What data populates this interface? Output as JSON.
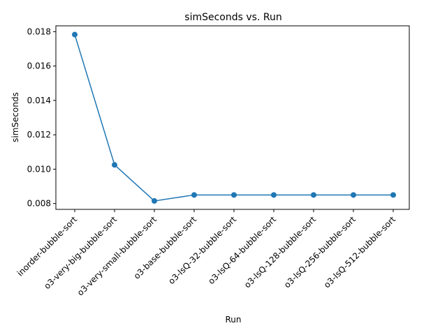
{
  "chart_data": {
    "type": "line",
    "title": "simSeconds vs. Run",
    "xlabel": "Run",
    "ylabel": "simSeconds",
    "categories": [
      "inorder-bubble-sort",
      "o3-very-big-bubble-sort",
      "o3-very-small-bubble-sort",
      "o3-base-bubble-sort",
      "o3-lsQ-32-bubble-sort",
      "o3-lsQ-64-bubble-sort",
      "o3-lsQ-128-bubble-sort",
      "o3-lsQ-256-bubble-sort",
      "o3-lsQ-512-bubble-sort"
    ],
    "series": [
      {
        "values": [
          0.01783,
          0.01025,
          0.00815,
          0.0085,
          0.0085,
          0.0085,
          0.0085,
          0.0085,
          0.0085
        ],
        "color": "#1f77b4",
        "marker": "circle"
      }
    ],
    "ylim": [
      0.00766,
      0.01834
    ],
    "yticks": [
      "0.008",
      "0.010",
      "0.012",
      "0.014",
      "0.016",
      "0.018"
    ],
    "ytick_values": [
      0.008,
      0.01,
      0.012,
      0.014,
      0.016,
      0.018
    ],
    "grid": false,
    "legend": "none"
  }
}
